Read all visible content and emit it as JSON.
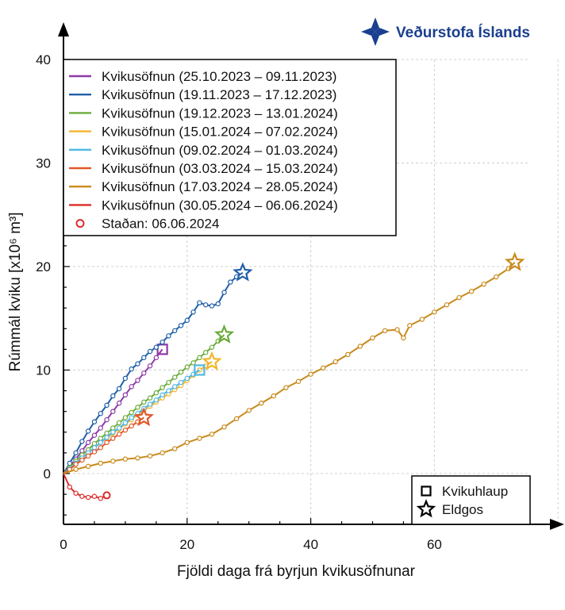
{
  "logo": {
    "text": "Veðurstofa Íslands",
    "color": "#1a3f8f"
  },
  "chart_data": {
    "type": "line",
    "title": "",
    "xlabel": "Fjöldi daga frá byrjun kvikusöfnunar",
    "ylabel": "Rúmmál kviku [x10⁶ m³]",
    "xlim": [
      0,
      80
    ],
    "ylim": [
      -5,
      40
    ],
    "xticks": [
      0,
      20,
      40,
      60
    ],
    "yticks": [
      0,
      10,
      20,
      30,
      40
    ],
    "grid": true,
    "legend_position": "top-left",
    "series": [
      {
        "name": "Kvikusöfnun (25.10.2023 – 09.11.2023)",
        "color": "#8e3aa6",
        "end_marker": "square",
        "x": [
          0,
          1,
          2,
          3,
          4,
          5,
          6,
          7,
          8,
          9,
          10,
          11,
          12,
          13,
          14,
          15,
          16
        ],
        "y": [
          0,
          0.7,
          1.4,
          2.2,
          3.0,
          3.7,
          4.4,
          5.2,
          6.0,
          6.8,
          7.6,
          8.4,
          9.0,
          9.7,
          10.4,
          11.2,
          12.0
        ]
      },
      {
        "name": "Kvikusöfnun (19.11.2023 – 17.12.2023)",
        "color": "#1f5fa8",
        "end_marker": "star",
        "x": [
          0,
          1,
          2,
          3,
          4,
          5,
          6,
          7,
          8,
          9,
          10,
          11,
          12,
          13,
          14,
          15,
          16,
          17,
          18,
          19,
          20,
          21,
          22,
          23,
          24,
          25,
          26,
          27,
          28,
          29
        ],
        "y": [
          0,
          1.0,
          2.0,
          3.1,
          4.1,
          5.0,
          5.8,
          6.6,
          7.5,
          8.2,
          9.2,
          10.1,
          10.6,
          11.2,
          11.8,
          12.2,
          12.7,
          13.3,
          13.8,
          14.3,
          14.8,
          15.6,
          16.5,
          16.3,
          16.2,
          16.4,
          17.5,
          18.5,
          19.0,
          19.4
        ]
      },
      {
        "name": "Kvikusöfnun (19.12.2023 – 13.01.2024)",
        "color": "#6aab3a",
        "end_marker": "star",
        "x": [
          0,
          1,
          2,
          3,
          4,
          5,
          6,
          7,
          8,
          9,
          10,
          11,
          12,
          13,
          14,
          15,
          16,
          17,
          18,
          19,
          20,
          21,
          22,
          23,
          24,
          25,
          26
        ],
        "y": [
          0,
          0.6,
          1.2,
          1.8,
          2.3,
          2.9,
          3.4,
          3.9,
          4.4,
          4.9,
          5.4,
          5.9,
          6.4,
          6.9,
          7.3,
          7.8,
          8.3,
          8.8,
          9.3,
          9.8,
          10.3,
          10.7,
          11.2,
          11.7,
          12.2,
          12.8,
          13.4
        ]
      },
      {
        "name": "Kvikusöfnun (15.01.2024 – 07.02.2024)",
        "color": "#f2b52a",
        "end_marker": "star",
        "x": [
          0,
          1,
          2,
          3,
          4,
          5,
          6,
          7,
          8,
          9,
          10,
          11,
          12,
          13,
          14,
          15,
          16,
          17,
          18,
          19,
          20,
          21,
          22,
          23,
          24
        ],
        "y": [
          0,
          0.5,
          1.0,
          1.5,
          2.0,
          2.5,
          3.0,
          3.4,
          3.9,
          4.3,
          4.8,
          5.2,
          5.7,
          6.1,
          6.5,
          6.9,
          7.3,
          7.7,
          8.1,
          8.5,
          9.0,
          9.5,
          10.0,
          10.4,
          10.8
        ]
      },
      {
        "name": "Kvikusöfnun (09.02.2024 – 01.03.2024)",
        "color": "#4fb8e6",
        "end_marker": "square",
        "x": [
          0,
          1,
          2,
          3,
          4,
          5,
          6,
          7,
          8,
          9,
          10,
          11,
          12,
          13,
          14,
          15,
          16,
          17,
          18,
          19,
          20,
          21,
          22
        ],
        "y": [
          0,
          0.5,
          1.0,
          1.5,
          2.0,
          2.5,
          3.0,
          3.5,
          4.0,
          4.4,
          4.9,
          5.4,
          5.8,
          6.3,
          6.7,
          7.1,
          7.6,
          8.0,
          8.4,
          8.8,
          9.2,
          9.6,
          10.0
        ]
      },
      {
        "name": "Kvikusöfnun (03.03.2024 – 15.03.2024)",
        "color": "#e0582a",
        "end_marker": "star",
        "x": [
          0,
          1,
          2,
          3,
          4,
          5,
          6,
          7,
          8,
          9,
          10,
          11,
          12,
          13
        ],
        "y": [
          0,
          0.4,
          0.9,
          1.3,
          1.7,
          2.1,
          2.5,
          3.0,
          3.4,
          3.8,
          4.2,
          4.6,
          5.0,
          5.4
        ]
      },
      {
        "name": "Kvikusöfnun (17.03.2024 – 28.05.2024)",
        "color": "#c98a1c",
        "end_marker": "star",
        "x": [
          0,
          2,
          4,
          6,
          8,
          10,
          12,
          14,
          16,
          18,
          20,
          22,
          24,
          26,
          28,
          30,
          32,
          34,
          36,
          38,
          40,
          42,
          44,
          46,
          48,
          50,
          52,
          54,
          55,
          56,
          58,
          60,
          62,
          64,
          66,
          68,
          70,
          72,
          73
        ],
        "y": [
          0,
          0.4,
          0.7,
          1.0,
          1.2,
          1.4,
          1.5,
          1.7,
          2.0,
          2.4,
          3.0,
          3.4,
          3.8,
          4.5,
          5.3,
          6.1,
          6.8,
          7.5,
          8.3,
          8.9,
          9.6,
          10.2,
          10.8,
          11.5,
          12.3,
          13.1,
          13.8,
          13.9,
          13.1,
          14.3,
          14.9,
          15.6,
          16.3,
          17.0,
          17.6,
          18.3,
          19.0,
          19.8,
          20.4
        ]
      },
      {
        "name": "Kvikusöfnun (30.05.2024 – 06.06.2024)",
        "color": "#dd2a2a",
        "end_marker": "none",
        "x": [
          0,
          1,
          2,
          3,
          4,
          5,
          6,
          7
        ],
        "y": [
          0,
          -1.3,
          -1.9,
          -2.2,
          -2.3,
          -2.2,
          -2.4,
          -2.1
        ]
      }
    ],
    "current_status": {
      "label": "Staðan: 06.06.2024",
      "x": 7,
      "y": -2.1,
      "color": "#dd2a2a"
    },
    "symbol_legend": [
      {
        "marker": "square",
        "label": "Kvikuhlaup"
      },
      {
        "marker": "star",
        "label": "Eldgos"
      }
    ]
  }
}
